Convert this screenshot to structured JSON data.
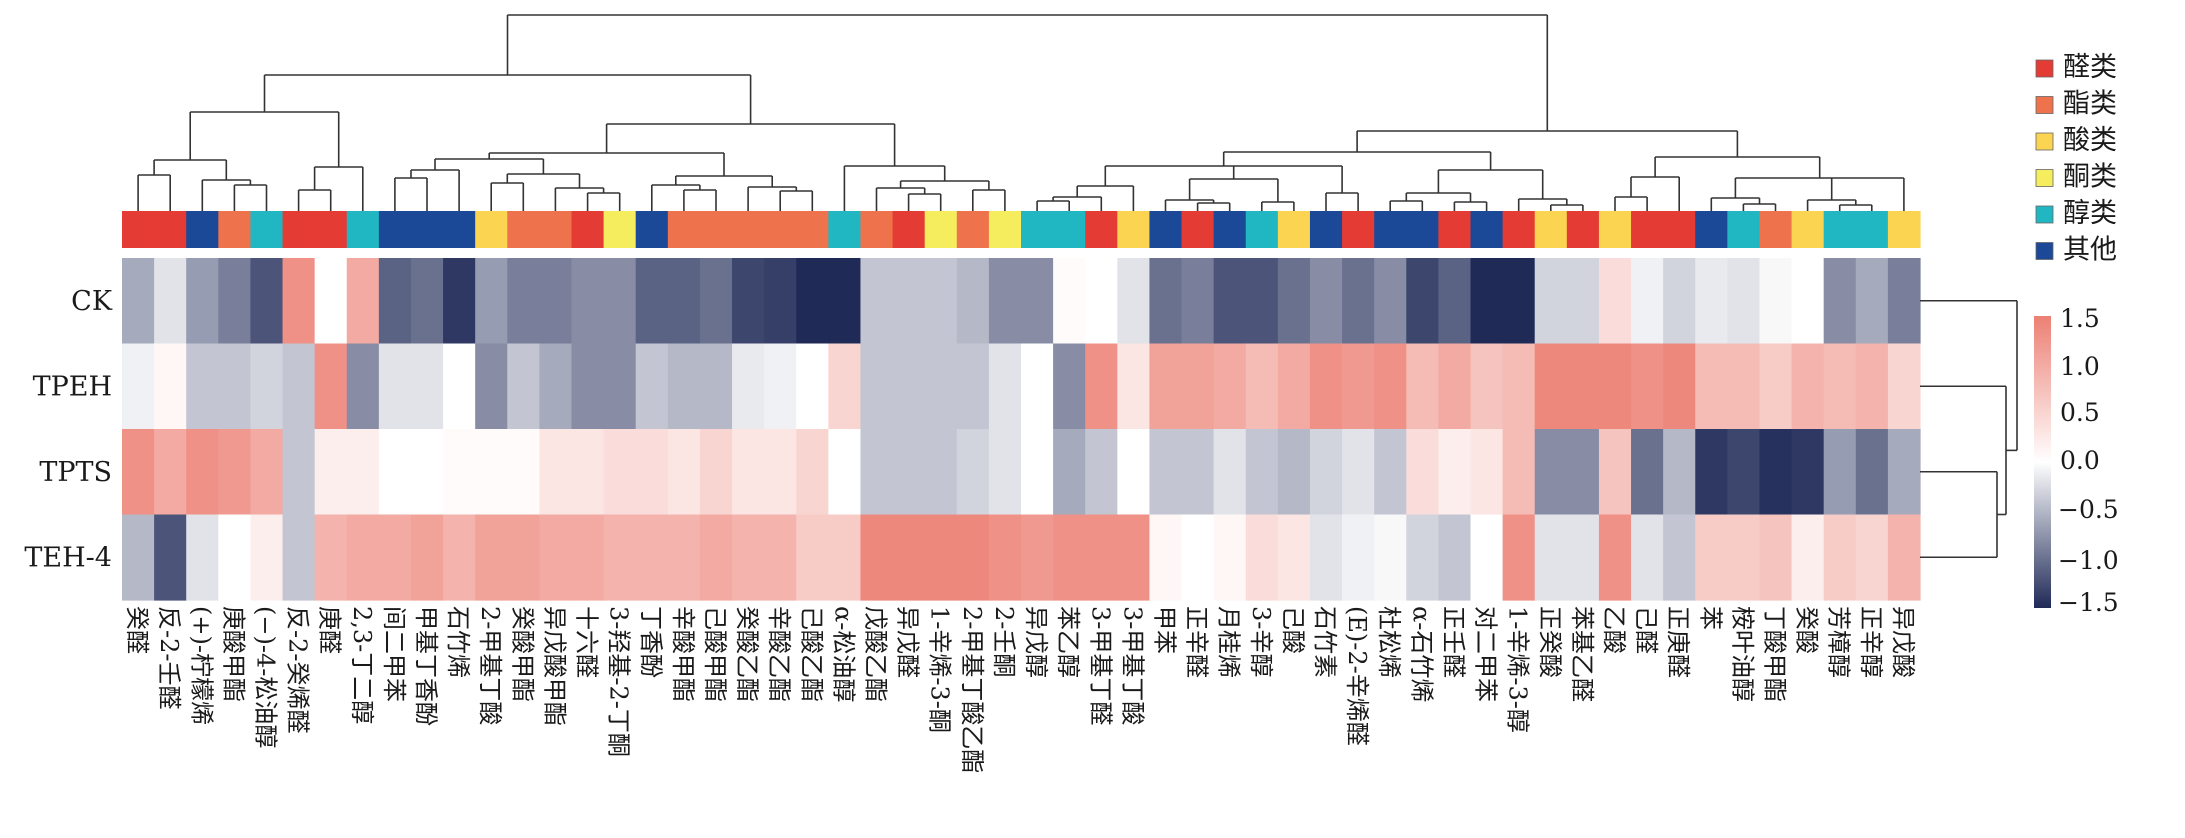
{
  "chart_data": {
    "type": "heatmap",
    "title": "",
    "rows": [
      "CK",
      "TPEH",
      "TPTS",
      "TEH-4"
    ],
    "columns": [
      "癸醛",
      "反-2-壬醛",
      "(+)-柠檬烯",
      "庚酸甲酯",
      "(−)-4-松油醇",
      "反-2-癸烯醛",
      "庚醛",
      "2,3-丁二醇",
      "间二甲苯",
      "甲基丁香酚",
      "石竹烯",
      "2-甲基丁酸",
      "癸酸甲酯",
      "异戊酸甲酯",
      "十六醛",
      "3-羟基-2-丁酮",
      "丁香酚",
      "辛酸甲酯",
      "己酸甲酯",
      "癸酸乙酯",
      "辛酸乙酯",
      "己酸乙酯",
      "α-松油醇",
      "戊酸乙酯",
      "异戊醛",
      "1-辛烯-3-酮",
      "2-甲基丁酸乙酯",
      "2-壬酮",
      "异戊醇",
      "苯乙醇",
      "3-甲基丁醛",
      "3-甲基丁酸",
      "甲苯",
      "正辛醛",
      "月桂烯",
      "3-辛醇",
      "己酸",
      "石竹素",
      "(E)-2-辛烯醛",
      "杜松烯",
      "α-石竹烯",
      "正壬醛",
      "对二甲苯",
      "1-辛烯-3-醇",
      "正癸酸",
      "苯基乙醛",
      "乙酸",
      "己醛",
      "正庚醛",
      "苯",
      "桉叶油醇",
      "丁酸甲酯",
      "癸酸",
      "芳樟醇",
      "正辛醇",
      "异戊酸"
    ],
    "column_categories": [
      "醛类",
      "醛类",
      "其他",
      "酯类",
      "醇类",
      "醛类",
      "醛类",
      "醇类",
      "其他",
      "其他",
      "其他",
      "酸类",
      "酯类",
      "酯类",
      "醛类",
      "酮类",
      "其他",
      "酯类",
      "酯类",
      "酯类",
      "酯类",
      "酯类",
      "醇类",
      "酯类",
      "醛类",
      "酮类",
      "酯类",
      "酮类",
      "醇类",
      "醇类",
      "醛类",
      "酸类",
      "其他",
      "醛类",
      "其他",
      "醇类",
      "酸类",
      "其他",
      "醛类",
      "其他",
      "其他",
      "醛类",
      "其他",
      "醛类",
      "酸类",
      "醛类",
      "酸类",
      "醛类",
      "醛类",
      "其他",
      "醇类",
      "酯类",
      "酸类",
      "醇类",
      "醇类",
      "酸类"
    ],
    "values": [
      [
        -0.6,
        -0.2,
        -0.7,
        -0.9,
        -1.2,
        1.3,
        0.0,
        1.0,
        -1.1,
        -1.0,
        -1.4,
        -0.7,
        -0.9,
        -0.9,
        -0.8,
        -0.8,
        -1.1,
        -1.1,
        -1.0,
        -1.3,
        -1.35,
        -1.5,
        -1.5,
        -0.4,
        -0.4,
        -0.4,
        -0.5,
        -0.8,
        -0.8,
        0.05,
        0.0,
        -0.2,
        -1.0,
        -0.9,
        -1.2,
        -1.2,
        -1.0,
        -0.8,
        -1.0,
        -0.8,
        -1.3,
        -1.1,
        -1.5,
        -1.5,
        -0.3,
        -0.3,
        0.4,
        -0.1,
        -0.3,
        -0.15,
        -0.2,
        -0.05,
        0.0,
        -0.8,
        -0.6,
        -0.9
      ],
      [
        -0.1,
        0.1,
        -0.4,
        -0.4,
        -0.3,
        -0.4,
        1.3,
        -0.8,
        -0.2,
        -0.2,
        0.0,
        -0.8,
        -0.4,
        -0.6,
        -0.8,
        -0.8,
        -0.4,
        -0.5,
        -0.5,
        -0.15,
        -0.1,
        0.0,
        0.5,
        -0.4,
        -0.4,
        -0.4,
        -0.4,
        -0.2,
        0.0,
        -0.8,
        1.3,
        0.3,
        1.1,
        1.1,
        1.0,
        0.8,
        1.0,
        1.3,
        1.2,
        1.3,
        0.8,
        1.0,
        0.7,
        0.8,
        1.4,
        1.4,
        1.4,
        1.3,
        1.4,
        0.8,
        0.8,
        0.6,
        0.9,
        0.8,
        0.9,
        0.5
      ],
      [
        1.3,
        1.0,
        1.3,
        1.2,
        1.0,
        -0.4,
        0.2,
        0.2,
        0.0,
        0.0,
        0.05,
        0.05,
        0.05,
        0.3,
        0.3,
        0.4,
        0.4,
        0.3,
        0.5,
        0.3,
        0.3,
        0.5,
        0.0,
        -0.4,
        -0.4,
        -0.4,
        -0.3,
        -0.2,
        0.0,
        -0.6,
        -0.4,
        0.0,
        -0.4,
        -0.4,
        -0.2,
        -0.4,
        -0.5,
        -0.3,
        -0.2,
        -0.4,
        0.4,
        0.2,
        0.3,
        0.8,
        -0.8,
        -0.8,
        0.7,
        -1.0,
        -0.5,
        -1.4,
        -1.3,
        -1.45,
        -1.4,
        -0.7,
        -1.0,
        -0.6
      ],
      [
        -0.5,
        -1.2,
        -0.2,
        0.0,
        0.2,
        -0.4,
        0.9,
        1.0,
        1.0,
        1.1,
        0.9,
        1.1,
        1.1,
        1.0,
        1.0,
        0.9,
        0.9,
        0.9,
        1.0,
        0.9,
        0.9,
        0.6,
        0.6,
        1.4,
        1.4,
        1.4,
        1.4,
        1.3,
        1.2,
        1.3,
        1.3,
        1.3,
        0.1,
        0.0,
        0.1,
        0.4,
        0.3,
        -0.2,
        -0.1,
        -0.05,
        -0.3,
        -0.4,
        0.0,
        1.3,
        -0.2,
        -0.2,
        1.3,
        -0.2,
        -0.4,
        0.6,
        0.6,
        0.7,
        0.2,
        0.6,
        0.5,
        0.9
      ]
    ],
    "colorbar": {
      "range": [
        -1.5,
        1.5
      ],
      "ticks": [
        "1.5",
        "1.0",
        "0.5",
        "0.0",
        "−0.5",
        "−1.0",
        "−1.5"
      ],
      "low_color": "#1f2a57",
      "mid_color": "#ffffff",
      "high_color": "#ec8074"
    },
    "legend": {
      "placement": "top-right",
      "items": [
        {
          "label": "醛类",
          "color": "#e53b35"
        },
        {
          "label": "酯类",
          "color": "#ee724b"
        },
        {
          "label": "酸类",
          "color": "#fbd452"
        },
        {
          "label": "酮类",
          "color": "#f6ed5e"
        },
        {
          "label": "醇类",
          "color": "#20b7c3"
        },
        {
          "label": "其他",
          "color": "#1b4897"
        }
      ]
    },
    "row_dendrogram": "((TPTS,TEH-4),TPEH),CK",
    "col_dendrogram": "hierarchical clustering (two main clusters: columns 1–32 and 33–56)"
  }
}
